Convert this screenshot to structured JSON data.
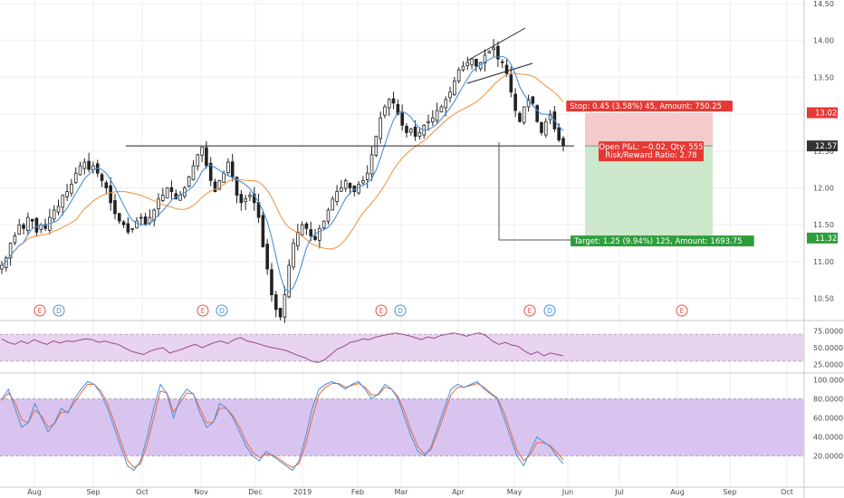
{
  "chart_data": {
    "type": "candlestick",
    "main_panel": {
      "y_ticks": [
        "14.50",
        "14.00",
        "13.50",
        "13.00",
        "12.50",
        "12.00",
        "11.50",
        "11.00",
        "10.50"
      ],
      "ylim": [
        10.25,
        14.5
      ],
      "last_price": "12.57",
      "stop_price_label": "13.02",
      "target_price_label": "11.32",
      "stop_label": "Stop: 0.45 (3.58%) 45, Amount: 750.25",
      "target_label": "Target: 1.25 (9.94%) 125, Amount: 1693.75",
      "pnl_line1": "Open P&L: −0.02, Qty: 555",
      "pnl_line2": "Risk/Reward Ratio: 2.78",
      "entry": 12.57,
      "stop": 13.02,
      "target": 11.32,
      "horizontal_level": 12.57,
      "close_prices": [
        10.95,
        11.05,
        11.25,
        11.35,
        11.5,
        11.45,
        11.6,
        11.55,
        11.4,
        11.5,
        11.45,
        11.6,
        11.7,
        11.75,
        11.9,
        11.95,
        12.05,
        12.2,
        12.3,
        12.35,
        12.25,
        12.3,
        12.2,
        12.1,
        12.0,
        11.8,
        11.65,
        11.55,
        11.5,
        11.4,
        11.45,
        11.55,
        11.6,
        11.5,
        11.6,
        11.7,
        11.85,
        11.9,
        12.0,
        11.95,
        11.85,
        11.9,
        12.0,
        12.15,
        12.3,
        12.45,
        12.55,
        12.3,
        12.1,
        11.95,
        12.1,
        12.2,
        12.35,
        12.15,
        11.9,
        11.8,
        11.85,
        11.9,
        11.8,
        11.6,
        11.2,
        10.9,
        10.55,
        10.35,
        10.25,
        10.55,
        10.95,
        11.25,
        11.4,
        11.5,
        11.45,
        11.35,
        11.3,
        11.45,
        11.55,
        11.7,
        11.85,
        11.95,
        12.0,
        12.1,
        12.0,
        11.95,
        12.05,
        12.1,
        12.2,
        12.45,
        12.7,
        12.95,
        13.1,
        13.2,
        13.15,
        13.0,
        12.85,
        12.75,
        12.8,
        12.7,
        12.75,
        12.85,
        12.9,
        12.95,
        13.05,
        13.1,
        13.2,
        13.3,
        13.45,
        13.6,
        13.65,
        13.7,
        13.75,
        13.65,
        13.7,
        13.8,
        13.85,
        13.9,
        13.75,
        13.7,
        13.55,
        13.3,
        13.05,
        12.9,
        13.1,
        13.2,
        13.15,
        12.9,
        12.75,
        12.9,
        13.0,
        12.8,
        12.65,
        12.57
      ],
      "series": [
        {
          "name": "",
          "color": "#4a90d9",
          "type": "ma20"
        },
        {
          "name": "",
          "color": "#f2994a",
          "type": "ma50"
        }
      ],
      "event_markers": [
        {
          "label": "E",
          "color": "#e0524c"
        },
        {
          "label": "D",
          "color": "#4a90d9"
        },
        {
          "label": "E",
          "color": "#e0524c"
        },
        {
          "label": "D",
          "color": "#4a90d9"
        },
        {
          "label": "E",
          "color": "#e0524c"
        },
        {
          "label": "D",
          "color": "#4a90d9"
        },
        {
          "label": "E",
          "color": "#e0524c"
        },
        {
          "label": "D",
          "color": "#4a90d9"
        },
        {
          "label": "E",
          "color": "#e0524c"
        }
      ]
    },
    "rsi_panel": {
      "y_ticks": [
        "75.0000",
        "50.0000",
        "25.0000"
      ],
      "ylim": [
        15,
        85
      ],
      "band": [
        30,
        70
      ],
      "line_color": "#9c4a8f",
      "values": [
        63,
        58,
        55,
        60,
        56,
        62,
        58,
        55,
        60,
        57,
        60,
        59,
        61,
        63,
        62,
        58,
        60,
        57,
        55,
        50,
        45,
        42,
        40,
        45,
        48,
        50,
        42,
        45,
        48,
        52,
        55,
        50,
        54,
        58,
        60,
        56,
        62,
        65,
        60,
        58,
        55,
        52,
        50,
        48,
        46,
        42,
        38,
        35,
        30,
        28,
        32,
        40,
        48,
        52,
        58,
        60,
        63,
        62,
        66,
        68,
        70,
        72,
        70,
        68,
        65,
        62,
        66,
        64,
        68,
        70,
        72,
        70,
        67,
        70,
        72,
        68,
        60,
        55,
        58,
        54,
        52,
        45,
        40,
        44,
        38,
        42,
        40,
        38
      ]
    },
    "stoch_panel": {
      "y_ticks": [
        "100.0000",
        "80.0000",
        "60.0000",
        "40.0000",
        "20.0000"
      ],
      "ylim": [
        -5,
        105
      ],
      "band": [
        20,
        80
      ],
      "k_color": "#4a90d9",
      "d_color": "#e8683a",
      "k_values": [
        80,
        90,
        70,
        50,
        55,
        75,
        60,
        45,
        55,
        70,
        65,
        80,
        90,
        98,
        95,
        85,
        70,
        50,
        30,
        10,
        5,
        15,
        40,
        70,
        95,
        85,
        60,
        80,
        90,
        85,
        65,
        50,
        55,
        75,
        70,
        60,
        45,
        30,
        20,
        15,
        25,
        20,
        15,
        10,
        5,
        15,
        40,
        70,
        90,
        95,
        98,
        95,
        90,
        95,
        98,
        90,
        80,
        85,
        95,
        90,
        80,
        60,
        40,
        25,
        20,
        30,
        50,
        70,
        90,
        95,
        92,
        95,
        98,
        90,
        85,
        80,
        60,
        40,
        20,
        10,
        25,
        40,
        35,
        30,
        20,
        12
      ],
      "d_values": [
        78,
        86,
        76,
        58,
        55,
        68,
        62,
        50,
        54,
        66,
        66,
        76,
        86,
        95,
        95,
        88,
        75,
        56,
        36,
        16,
        8,
        12,
        32,
        60,
        88,
        86,
        66,
        76,
        86,
        85,
        70,
        55,
        55,
        70,
        70,
        62,
        50,
        35,
        24,
        18,
        22,
        21,
        17,
        12,
        8,
        12,
        32,
        60,
        84,
        92,
        96,
        96,
        92,
        94,
        96,
        92,
        84,
        84,
        92,
        90,
        82,
        66,
        46,
        30,
        22,
        27,
        45,
        64,
        84,
        92,
        92,
        94,
        96,
        92,
        86,
        81,
        66,
        46,
        26,
        15,
        21,
        34,
        34,
        31,
        24,
        16
      ]
    },
    "x_ticks": [
      "Aug",
      "Sep",
      "Oct",
      "Nov",
      "Dec",
      "2019",
      "Feb",
      "Mar",
      "Apr",
      "May",
      "Jun",
      "Jul",
      "Aug",
      "Sep",
      "Oct"
    ]
  }
}
